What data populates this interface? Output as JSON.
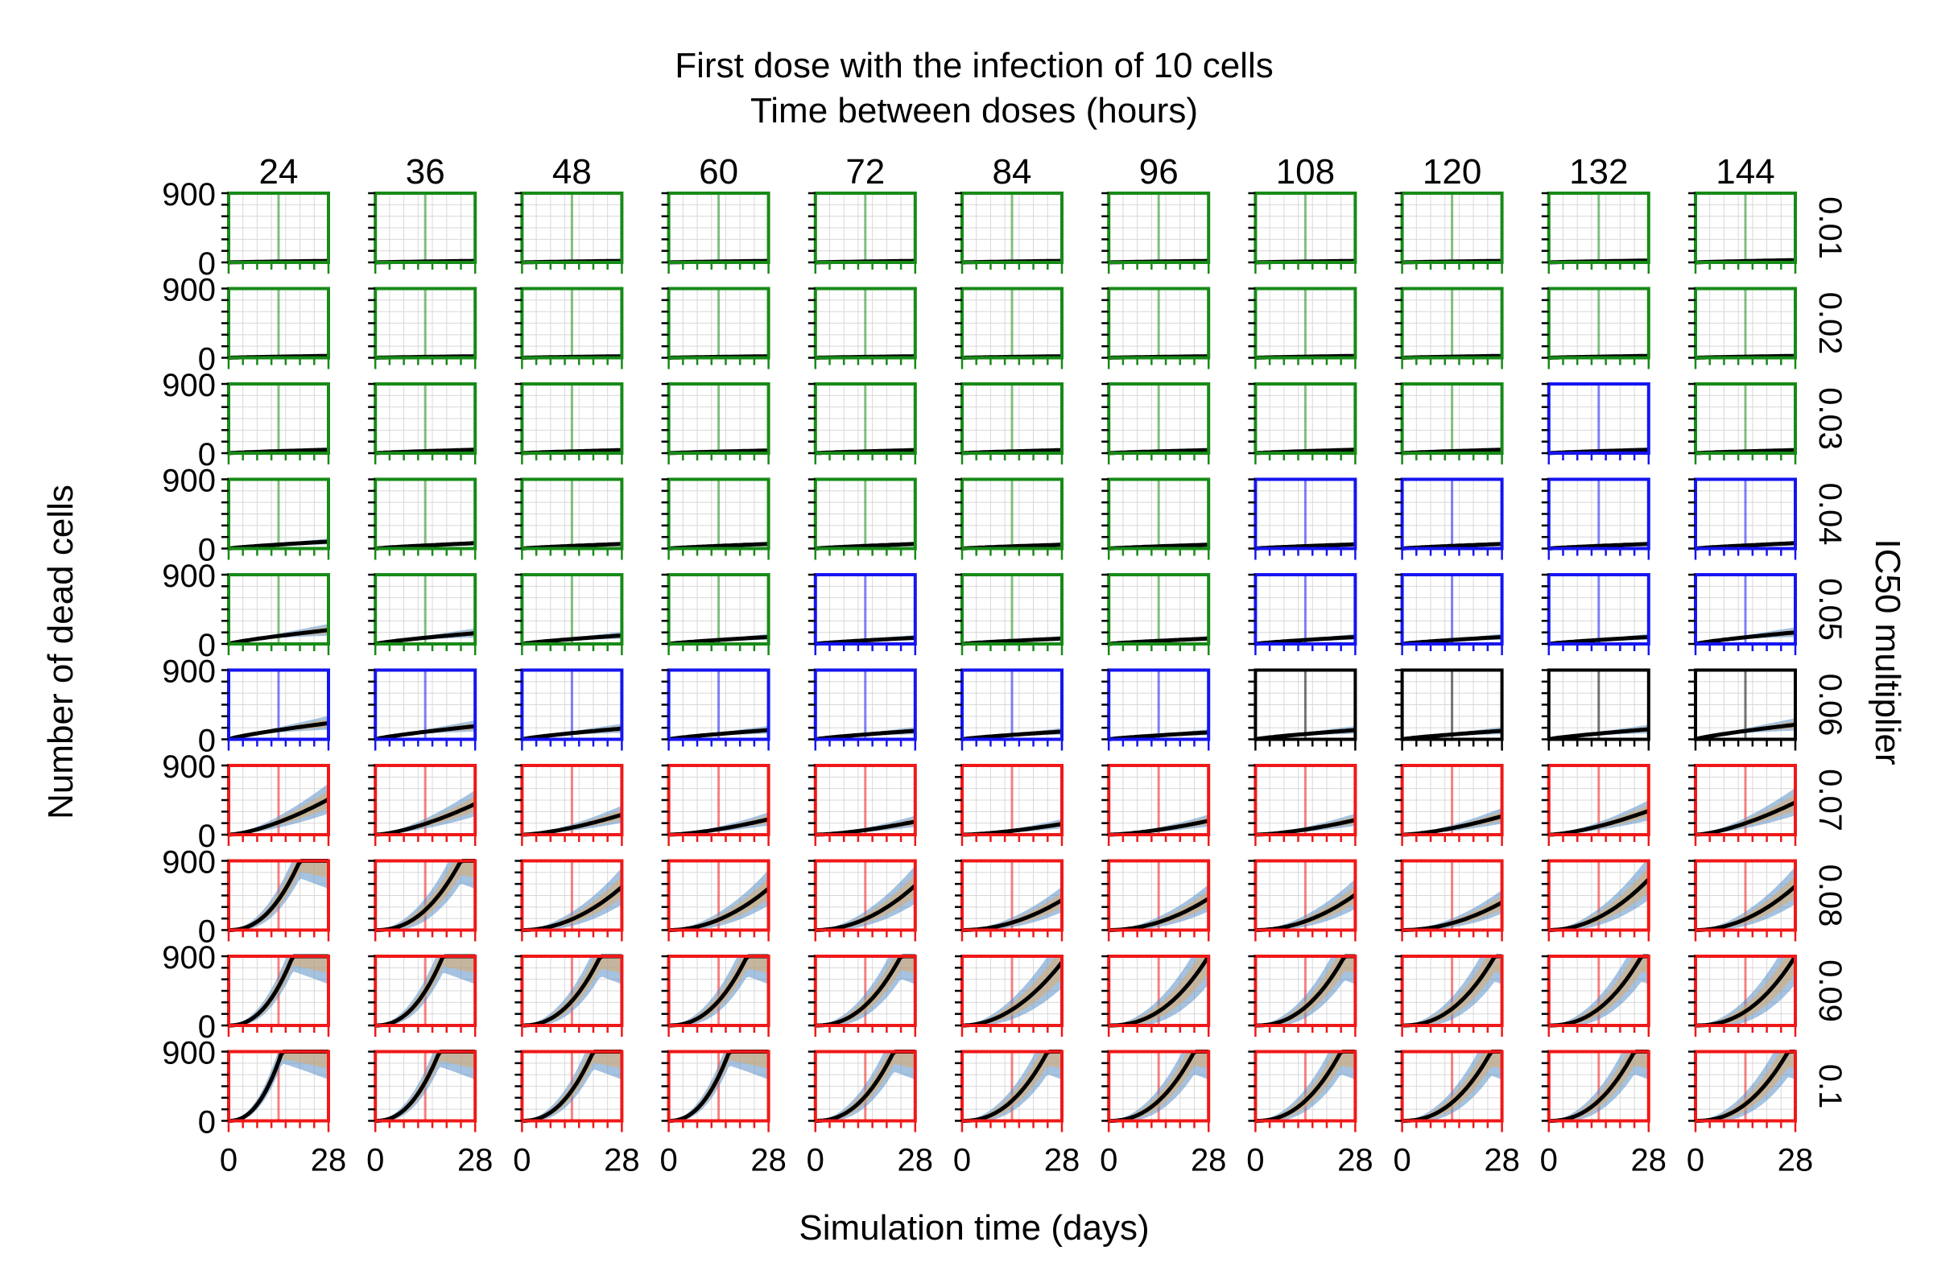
{
  "chart_data": {
    "type": "line",
    "layout": "small-multiples grid, 10 rows x 11 columns",
    "title_line1": "First dose with the infection of 10 cells",
    "title_line2": "Time between doses (hours)",
    "xlabel": "Simulation time (days)",
    "ylabel": "Number of dead cells",
    "right_label": "IC50 multiplier",
    "x_tick_labels": [
      "0",
      "28"
    ],
    "xlim": [
      0,
      28
    ],
    "y_tick_labels": [
      "900",
      "0"
    ],
    "ylim": [
      0,
      900
    ],
    "grid": true,
    "columns": [
      "24",
      "36",
      "48",
      "60",
      "72",
      "84",
      "96",
      "108",
      "120",
      "132",
      "144"
    ],
    "rows": [
      "0.01",
      "0.02",
      "0.03",
      "0.04",
      "0.05",
      "0.06",
      "0.07",
      "0.08",
      "0.09",
      "0.1"
    ],
    "outcome_colors": {
      "g": "#178a17",
      "b": "#1515f0",
      "k": "#000000",
      "r": "#f01818"
    },
    "band_colors": [
      "#5b8fc7",
      "#e5a85c",
      "#8c8c8c"
    ],
    "mean_line_color": "#000000",
    "outcome_grid": [
      "ggggggggggg",
      "ggggggggggg",
      "gggggggggbg",
      "gggggggbbbb",
      "ggggbggbbbb",
      "bbbbbbbkkkk",
      "rrrrrrrrrrr",
      "rrrrrrrrrrr",
      "rrrrrrrrrrr",
      "rrrrrrrrrrr"
    ],
    "final_dead_cells": [
      [
        20,
        20,
        20,
        20,
        20,
        20,
        20,
        20,
        20,
        25,
        30
      ],
      [
        25,
        20,
        20,
        20,
        20,
        20,
        20,
        25,
        25,
        25,
        25
      ],
      [
        45,
        45,
        40,
        35,
        40,
        40,
        40,
        45,
        45,
        45,
        40
      ],
      [
        90,
        70,
        60,
        60,
        60,
        50,
        50,
        55,
        60,
        60,
        70
      ],
      [
        180,
        140,
        110,
        90,
        80,
        70,
        70,
        90,
        90,
        90,
        150
      ],
      [
        210,
        170,
        140,
        120,
        110,
        100,
        90,
        120,
        110,
        130,
        190
      ],
      [
        460,
        400,
        260,
        200,
        170,
        140,
        180,
        190,
        240,
        310,
        420
      ],
      [
        900,
        900,
        560,
        540,
        580,
        390,
        410,
        460,
        360,
        660,
        570
      ],
      [
        900,
        900,
        900,
        900,
        900,
        820,
        900,
        900,
        900,
        900,
        900
      ],
      [
        900,
        900,
        900,
        900,
        900,
        900,
        900,
        900,
        900,
        900,
        900
      ]
    ],
    "saturation_day": [
      [
        null,
        null,
        null,
        null,
        null,
        null,
        null,
        null,
        null,
        null,
        null
      ],
      [
        null,
        null,
        null,
        null,
        null,
        null,
        null,
        null,
        null,
        null,
        null
      ],
      [
        null,
        null,
        null,
        null,
        null,
        null,
        null,
        null,
        null,
        null,
        null
      ],
      [
        null,
        null,
        null,
        null,
        null,
        null,
        null,
        null,
        null,
        null,
        null
      ],
      [
        null,
        null,
        null,
        null,
        null,
        null,
        null,
        null,
        null,
        null,
        null
      ],
      [
        null,
        null,
        null,
        null,
        null,
        null,
        null,
        null,
        null,
        null,
        null
      ],
      [
        null,
        null,
        null,
        null,
        null,
        null,
        null,
        null,
        null,
        null,
        null
      ],
      [
        20,
        24,
        null,
        null,
        null,
        null,
        null,
        null,
        null,
        null,
        null
      ],
      [
        18,
        19,
        22,
        22,
        24,
        null,
        28,
        25,
        26,
        26,
        28
      ],
      [
        15,
        18,
        20,
        17,
        22,
        24,
        24,
        24,
        25,
        24,
        26
      ]
    ]
  }
}
